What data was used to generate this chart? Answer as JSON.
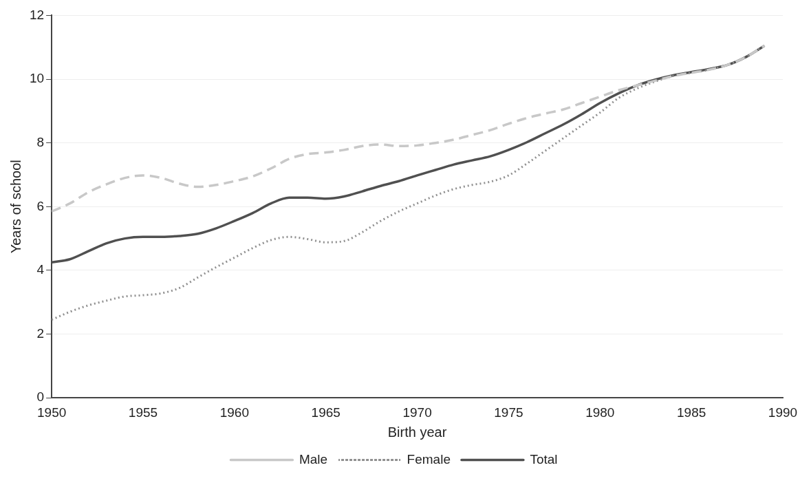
{
  "chart_data": {
    "type": "line",
    "xlabel": "Birth year",
    "ylabel": "Years of school",
    "x": [
      1950,
      1951,
      1952,
      1953,
      1954,
      1955,
      1956,
      1957,
      1958,
      1959,
      1960,
      1961,
      1962,
      1963,
      1964,
      1965,
      1966,
      1967,
      1968,
      1969,
      1970,
      1971,
      1972,
      1973,
      1974,
      1975,
      1976,
      1977,
      1978,
      1979,
      1980,
      1981,
      1982,
      1983,
      1984,
      1985,
      1986,
      1987,
      1988,
      1989
    ],
    "series": [
      {
        "name": "Male",
        "color": "#c8c8c8",
        "line_style": "dashed",
        "values": [
          5.85,
          6.1,
          6.45,
          6.7,
          6.9,
          6.98,
          6.9,
          6.72,
          6.62,
          6.68,
          6.8,
          6.95,
          7.2,
          7.5,
          7.65,
          7.7,
          7.78,
          7.9,
          7.95,
          7.9,
          7.92,
          8.0,
          8.1,
          8.25,
          8.4,
          8.6,
          8.78,
          8.92,
          9.05,
          9.25,
          9.45,
          9.65,
          9.8,
          9.95,
          10.1,
          10.2,
          10.3,
          10.45,
          10.7,
          11.05
        ]
      },
      {
        "name": "Female",
        "color": "#909090",
        "line_style": "dotted",
        "values": [
          2.45,
          2.7,
          2.9,
          3.05,
          3.18,
          3.22,
          3.28,
          3.45,
          3.78,
          4.1,
          4.4,
          4.7,
          4.95,
          5.05,
          4.98,
          4.88,
          4.92,
          5.2,
          5.55,
          5.85,
          6.1,
          6.35,
          6.55,
          6.68,
          6.78,
          6.98,
          7.35,
          7.75,
          8.15,
          8.55,
          8.95,
          9.4,
          9.7,
          9.92,
          10.1,
          10.2,
          10.3,
          10.45,
          10.7,
          11.05
        ]
      },
      {
        "name": "Total",
        "color": "#505050",
        "line_style": "solid",
        "values": [
          4.25,
          4.35,
          4.6,
          4.85,
          5.0,
          5.05,
          5.05,
          5.08,
          5.15,
          5.32,
          5.55,
          5.8,
          6.1,
          6.28,
          6.28,
          6.25,
          6.32,
          6.48,
          6.65,
          6.8,
          6.98,
          7.15,
          7.32,
          7.45,
          7.58,
          7.78,
          8.02,
          8.3,
          8.58,
          8.9,
          9.25,
          9.55,
          9.8,
          9.98,
          10.12,
          10.22,
          10.32,
          10.45,
          10.7,
          11.05
        ]
      }
    ],
    "xlim": [
      1950,
      1990
    ],
    "xticks": [
      1950,
      1955,
      1960,
      1965,
      1970,
      1975,
      1980,
      1985,
      1990
    ],
    "ylim": [
      0,
      12
    ],
    "yticks": [
      0,
      2,
      4,
      6,
      8,
      10,
      12
    ],
    "grid": "y",
    "legend": "bottom",
    "marker": "none"
  }
}
